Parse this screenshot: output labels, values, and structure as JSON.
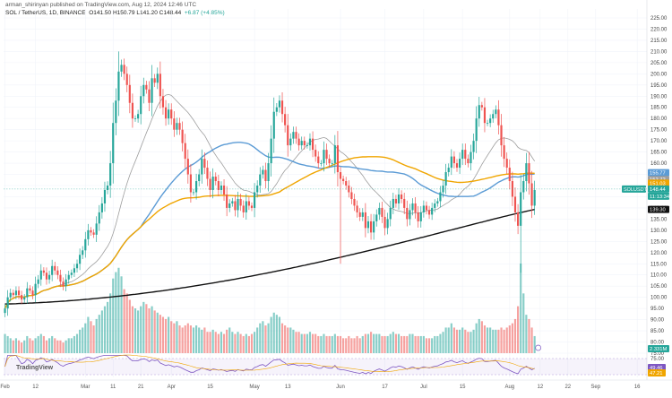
{
  "header": {
    "published": "arman_shirinyan published on TradingView.com, Aug 12, 2024 12:46 UTC",
    "symbol": "SOL / TetherUS, 1D, BINANCE",
    "ohlc": "O141.50  H150.79  L141.20  C148.44",
    "change": "+6.87 (+4.85%)"
  },
  "watermark": "TradingView",
  "price_badges": [
    {
      "label": "155.77",
      "value": 155.77,
      "color": "#5b9bd5"
    },
    {
      "label": "152.72",
      "value": 152.72,
      "color": "#9e9e9e"
    },
    {
      "label": "151.03",
      "value": 151.03,
      "color": "#f0a500"
    },
    {
      "label": "148.44",
      "value": 148.44,
      "color": "#26a69a"
    },
    {
      "label": "11:13:34",
      "value": 146.6,
      "color": "#26a69a"
    },
    {
      "label": "139.30",
      "value": 139.3,
      "color": "#111111"
    }
  ],
  "symbol_badge": "SOLUSDT",
  "volume_badge": "2.331M",
  "rsi_badges": [
    {
      "label": "49.46",
      "value": 49.46,
      "color": "#7e57c2"
    },
    {
      "label": "47.21",
      "value": 47.21,
      "color": "#f0a500"
    }
  ],
  "chart_data": {
    "type": "candlestick",
    "y_axis": {
      "min": 75,
      "max": 225,
      "step": 5,
      "ticks": [
        "75.00",
        "80.00",
        "85.00",
        "90.00",
        "95.00",
        "100.00",
        "105.00",
        "110.00",
        "115.00",
        "120.00",
        "125.00",
        "130.00",
        "135.00",
        "140.00",
        "145.00",
        "150.00",
        "155.00",
        "160.00",
        "165.00",
        "170.00",
        "175.00",
        "180.00",
        "185.00",
        "190.00",
        "195.00",
        "200.00",
        "205.00",
        "210.00",
        "215.00",
        "220.00",
        "225.00"
      ]
    },
    "x_axis": {
      "ticks": [
        {
          "label": "Feb",
          "day": 0
        },
        {
          "label": "12",
          "day": 11
        },
        {
          "label": "Mar",
          "day": 29
        },
        {
          "label": "11",
          "day": 39
        },
        {
          "label": "21",
          "day": 49
        },
        {
          "label": "Apr",
          "day": 60
        },
        {
          "label": "15",
          "day": 74
        },
        {
          "label": "May",
          "day": 90
        },
        {
          "label": "13",
          "day": 102
        },
        {
          "label": "Jun",
          "day": 121
        },
        {
          "label": "17",
          "day": 137
        },
        {
          "label": "Jul",
          "day": 151
        },
        {
          "label": "15",
          "day": 165
        },
        {
          "label": "Aug",
          "day": 182
        },
        {
          "label": "12",
          "day": 193
        },
        {
          "label": "22",
          "day": 203
        },
        {
          "label": "Sep",
          "day": 213
        },
        {
          "label": "16",
          "day": 228
        }
      ],
      "max_day": 232
    },
    "closes": [
      95,
      100,
      102,
      101,
      103,
      101,
      99,
      100,
      104,
      103,
      101,
      106,
      108,
      112,
      111,
      108,
      110,
      114,
      112,
      110,
      107,
      105,
      108,
      110,
      111,
      113,
      115,
      119,
      121,
      126,
      130,
      129,
      128,
      133,
      138,
      142,
      148,
      150,
      160,
      178,
      188,
      201,
      204,
      200,
      195,
      187,
      180,
      180,
      182,
      190,
      195,
      193,
      187,
      198,
      196,
      200,
      190,
      185,
      180,
      184,
      180,
      175,
      178,
      175,
      169,
      162,
      155,
      147,
      147,
      152,
      155,
      162,
      158,
      153,
      148,
      154,
      152,
      148,
      150,
      146,
      140,
      142,
      143,
      139,
      144,
      141,
      138,
      143,
      141,
      140,
      147,
      150,
      155,
      157,
      152,
      160,
      171,
      183,
      185,
      188,
      182,
      177,
      168,
      171,
      174,
      171,
      168,
      170,
      168,
      168,
      171,
      166,
      163,
      160,
      160,
      166,
      162,
      160,
      160,
      168,
      156,
      153,
      152,
      150,
      147,
      144,
      141,
      138,
      136,
      138,
      131,
      134,
      129,
      134,
      137,
      140,
      136,
      131,
      135,
      140,
      144,
      142,
      146,
      144,
      140,
      135,
      139,
      142,
      138,
      134,
      138,
      141,
      139,
      137,
      140,
      142,
      143,
      147,
      150,
      156,
      158,
      163,
      160,
      158,
      162,
      166,
      162,
      160,
      165,
      170,
      180,
      186,
      185,
      178,
      178,
      180,
      182,
      184,
      177,
      168,
      162,
      158,
      152,
      145,
      138,
      132,
      147,
      152,
      160,
      151,
      141,
      148
    ],
    "volume_series": [
      {
        "name": "Volume",
        "values": [
          9,
          8,
          7,
          6,
          7,
          6,
          5,
          6,
          8,
          7,
          6,
          7,
          8,
          9,
          8,
          6,
          7,
          8,
          7,
          6,
          6,
          5,
          6,
          7,
          7,
          8,
          9,
          11,
          12,
          14,
          17,
          15,
          13,
          16,
          18,
          20,
          22,
          24,
          28,
          35,
          38,
          40,
          36,
          30,
          28,
          25,
          22,
          21,
          20,
          22,
          24,
          23,
          21,
          22,
          20,
          19,
          18,
          17,
          16,
          17,
          15,
          14,
          15,
          13,
          12,
          13,
          14,
          13,
          12,
          13,
          12,
          11,
          12,
          10,
          10,
          11,
          10,
          9,
          10,
          9,
          11,
          12,
          10,
          9,
          10,
          9,
          8,
          9,
          8,
          9,
          10,
          12,
          14,
          15,
          13,
          14,
          17,
          19,
          18,
          17,
          14,
          13,
          12,
          12,
          11,
          10,
          10,
          9,
          9,
          9,
          10,
          9,
          9,
          8,
          8,
          9,
          8,
          8,
          8,
          9,
          8,
          8,
          7,
          7,
          8,
          7,
          7,
          8,
          7,
          8,
          9,
          9,
          10,
          9,
          9,
          9,
          8,
          8,
          8,
          9,
          10,
          9,
          9,
          8,
          8,
          8,
          9,
          9,
          8,
          8,
          8,
          8,
          7,
          7,
          7,
          8,
          8,
          9,
          10,
          12,
          12,
          14,
          12,
          11,
          11,
          12,
          11,
          10,
          10,
          11,
          14,
          16,
          15,
          13,
          12,
          12,
          11,
          11,
          11,
          12,
          11,
          12,
          13,
          14,
          16,
          22,
          42,
          28,
          18,
          16,
          12,
          8
        ]
      }
    ],
    "moving_averages": [
      {
        "name": "MA20",
        "color": "#9e9e9e",
        "last": 152.72
      },
      {
        "name": "MA50",
        "color": "#5b9bd5",
        "last": 155.77
      },
      {
        "name": "MA100",
        "color": "#f0a500",
        "last": 151.03
      },
      {
        "name": "MA200",
        "color": "#111111",
        "last": 139.3
      }
    ],
    "rsi": {
      "y_ticks": [
        "75.00",
        "25.00"
      ],
      "upper": 75,
      "lower": 25
    }
  }
}
